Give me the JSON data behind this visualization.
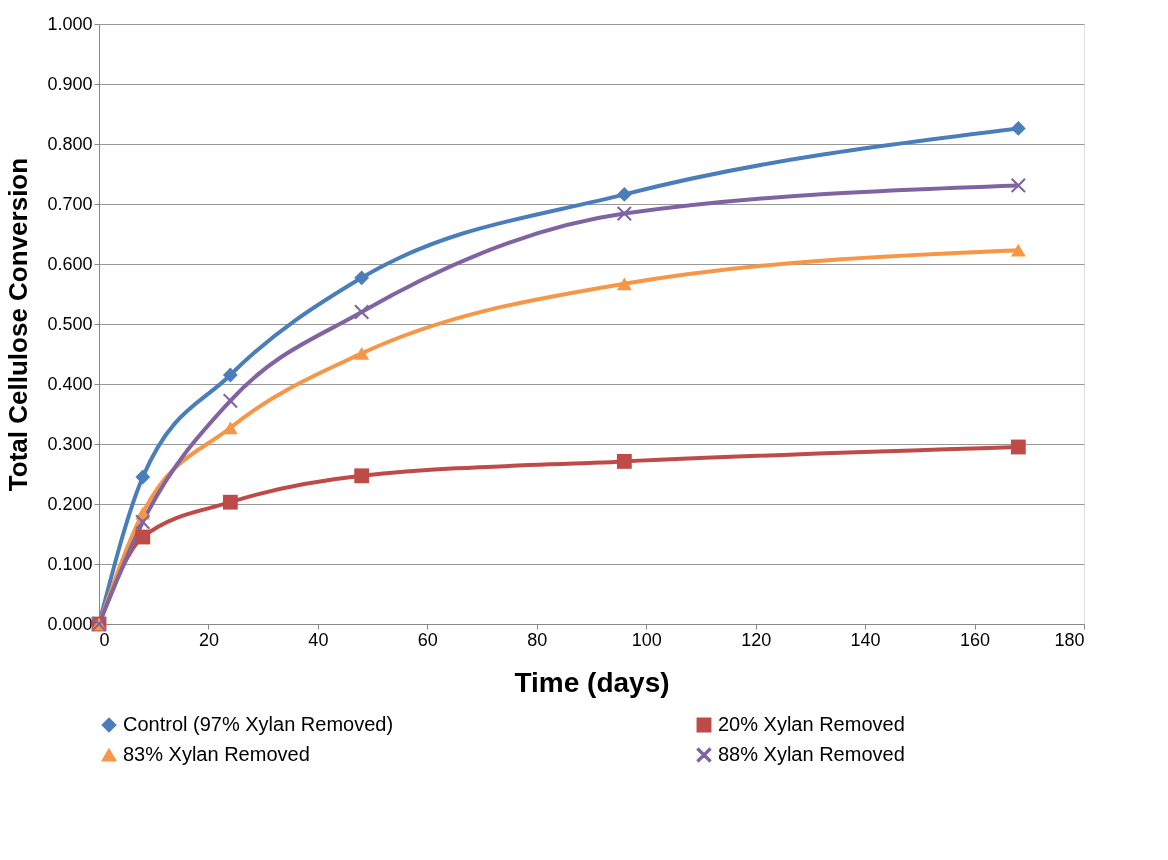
{
  "chart_data": {
    "type": "line",
    "xlabel": "Time (days)",
    "ylabel": "Total Cellulose Conversion",
    "x": [
      0,
      8,
      24,
      48,
      96,
      168
    ],
    "series": [
      {
        "name": "Control (97% Xylan Removed)",
        "color": "#4a7ebb",
        "marker": "diamond",
        "values": [
          0,
          0.245,
          0.415,
          0.577,
          0.716,
          0.826
        ]
      },
      {
        "name": "20% Xylan Removed",
        "color": "#be4b48",
        "marker": "square",
        "values": [
          0,
          0.145,
          0.203,
          0.247,
          0.271,
          0.295
        ]
      },
      {
        "name": "83% Xylan Removed",
        "color": "#f79646",
        "marker": "triangle",
        "values": [
          0,
          0.185,
          0.327,
          0.451,
          0.567,
          0.623
        ]
      },
      {
        "name": "88% Xylan Removed",
        "color": "#8064a2",
        "marker": "cross",
        "values": [
          0,
          0.17,
          0.372,
          0.52,
          0.684,
          0.731
        ]
      }
    ],
    "xlim": [
      0,
      180
    ],
    "xticks": [
      0,
      20,
      40,
      60,
      80,
      100,
      120,
      140,
      160,
      180
    ],
    "ylim": [
      0,
      1
    ],
    "yticks": [
      {
        "value": 0,
        "label": "0.000"
      },
      {
        "value": 0.1,
        "label": "0.100"
      },
      {
        "value": 0.2,
        "label": "0.200"
      },
      {
        "value": 0.3,
        "label": "0.300"
      },
      {
        "value": 0.4,
        "label": "0.400"
      },
      {
        "value": 0.5,
        "label": "0.500"
      },
      {
        "value": 0.6,
        "label": "0.600"
      },
      {
        "value": 0.7,
        "label": "0.700"
      },
      {
        "value": 0.8,
        "label": "0.800"
      },
      {
        "value": 0.9,
        "label": "0.900"
      },
      {
        "value": 1,
        "label": "1.000"
      }
    ],
    "grid": "y",
    "legend": "bottom",
    "line_style": "solid"
  }
}
